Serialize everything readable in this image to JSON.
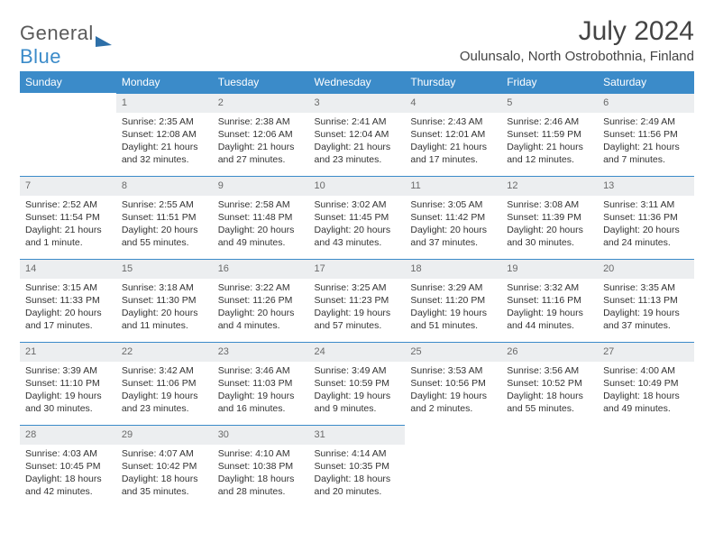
{
  "brand": {
    "word1": "General",
    "word2": "Blue"
  },
  "title": "July 2024",
  "location": "Oulunsalo, North Ostrobothnia, Finland",
  "accent_color": "#3b8bc9",
  "daynum_bg": "#eceef0",
  "weekday_labels": [
    "Sunday",
    "Monday",
    "Tuesday",
    "Wednesday",
    "Thursday",
    "Friday",
    "Saturday"
  ],
  "weeks": [
    [
      {
        "n": "",
        "sr": "",
        "ss": "",
        "dl": ""
      },
      {
        "n": "1",
        "sr": "Sunrise: 2:35 AM",
        "ss": "Sunset: 12:08 AM",
        "dl": "Daylight: 21 hours and 32 minutes."
      },
      {
        "n": "2",
        "sr": "Sunrise: 2:38 AM",
        "ss": "Sunset: 12:06 AM",
        "dl": "Daylight: 21 hours and 27 minutes."
      },
      {
        "n": "3",
        "sr": "Sunrise: 2:41 AM",
        "ss": "Sunset: 12:04 AM",
        "dl": "Daylight: 21 hours and 23 minutes."
      },
      {
        "n": "4",
        "sr": "Sunrise: 2:43 AM",
        "ss": "Sunset: 12:01 AM",
        "dl": "Daylight: 21 hours and 17 minutes."
      },
      {
        "n": "5",
        "sr": "Sunrise: 2:46 AM",
        "ss": "Sunset: 11:59 PM",
        "dl": "Daylight: 21 hours and 12 minutes."
      },
      {
        "n": "6",
        "sr": "Sunrise: 2:49 AM",
        "ss": "Sunset: 11:56 PM",
        "dl": "Daylight: 21 hours and 7 minutes."
      }
    ],
    [
      {
        "n": "7",
        "sr": "Sunrise: 2:52 AM",
        "ss": "Sunset: 11:54 PM",
        "dl": "Daylight: 21 hours and 1 minute."
      },
      {
        "n": "8",
        "sr": "Sunrise: 2:55 AM",
        "ss": "Sunset: 11:51 PM",
        "dl": "Daylight: 20 hours and 55 minutes."
      },
      {
        "n": "9",
        "sr": "Sunrise: 2:58 AM",
        "ss": "Sunset: 11:48 PM",
        "dl": "Daylight: 20 hours and 49 minutes."
      },
      {
        "n": "10",
        "sr": "Sunrise: 3:02 AM",
        "ss": "Sunset: 11:45 PM",
        "dl": "Daylight: 20 hours and 43 minutes."
      },
      {
        "n": "11",
        "sr": "Sunrise: 3:05 AM",
        "ss": "Sunset: 11:42 PM",
        "dl": "Daylight: 20 hours and 37 minutes."
      },
      {
        "n": "12",
        "sr": "Sunrise: 3:08 AM",
        "ss": "Sunset: 11:39 PM",
        "dl": "Daylight: 20 hours and 30 minutes."
      },
      {
        "n": "13",
        "sr": "Sunrise: 3:11 AM",
        "ss": "Sunset: 11:36 PM",
        "dl": "Daylight: 20 hours and 24 minutes."
      }
    ],
    [
      {
        "n": "14",
        "sr": "Sunrise: 3:15 AM",
        "ss": "Sunset: 11:33 PM",
        "dl": "Daylight: 20 hours and 17 minutes."
      },
      {
        "n": "15",
        "sr": "Sunrise: 3:18 AM",
        "ss": "Sunset: 11:30 PM",
        "dl": "Daylight: 20 hours and 11 minutes."
      },
      {
        "n": "16",
        "sr": "Sunrise: 3:22 AM",
        "ss": "Sunset: 11:26 PM",
        "dl": "Daylight: 20 hours and 4 minutes."
      },
      {
        "n": "17",
        "sr": "Sunrise: 3:25 AM",
        "ss": "Sunset: 11:23 PM",
        "dl": "Daylight: 19 hours and 57 minutes."
      },
      {
        "n": "18",
        "sr": "Sunrise: 3:29 AM",
        "ss": "Sunset: 11:20 PM",
        "dl": "Daylight: 19 hours and 51 minutes."
      },
      {
        "n": "19",
        "sr": "Sunrise: 3:32 AM",
        "ss": "Sunset: 11:16 PM",
        "dl": "Daylight: 19 hours and 44 minutes."
      },
      {
        "n": "20",
        "sr": "Sunrise: 3:35 AM",
        "ss": "Sunset: 11:13 PM",
        "dl": "Daylight: 19 hours and 37 minutes."
      }
    ],
    [
      {
        "n": "21",
        "sr": "Sunrise: 3:39 AM",
        "ss": "Sunset: 11:10 PM",
        "dl": "Daylight: 19 hours and 30 minutes."
      },
      {
        "n": "22",
        "sr": "Sunrise: 3:42 AM",
        "ss": "Sunset: 11:06 PM",
        "dl": "Daylight: 19 hours and 23 minutes."
      },
      {
        "n": "23",
        "sr": "Sunrise: 3:46 AM",
        "ss": "Sunset: 11:03 PM",
        "dl": "Daylight: 19 hours and 16 minutes."
      },
      {
        "n": "24",
        "sr": "Sunrise: 3:49 AM",
        "ss": "Sunset: 10:59 PM",
        "dl": "Daylight: 19 hours and 9 minutes."
      },
      {
        "n": "25",
        "sr": "Sunrise: 3:53 AM",
        "ss": "Sunset: 10:56 PM",
        "dl": "Daylight: 19 hours and 2 minutes."
      },
      {
        "n": "26",
        "sr": "Sunrise: 3:56 AM",
        "ss": "Sunset: 10:52 PM",
        "dl": "Daylight: 18 hours and 55 minutes."
      },
      {
        "n": "27",
        "sr": "Sunrise: 4:00 AM",
        "ss": "Sunset: 10:49 PM",
        "dl": "Daylight: 18 hours and 49 minutes."
      }
    ],
    [
      {
        "n": "28",
        "sr": "Sunrise: 4:03 AM",
        "ss": "Sunset: 10:45 PM",
        "dl": "Daylight: 18 hours and 42 minutes."
      },
      {
        "n": "29",
        "sr": "Sunrise: 4:07 AM",
        "ss": "Sunset: 10:42 PM",
        "dl": "Daylight: 18 hours and 35 minutes."
      },
      {
        "n": "30",
        "sr": "Sunrise: 4:10 AM",
        "ss": "Sunset: 10:38 PM",
        "dl": "Daylight: 18 hours and 28 minutes."
      },
      {
        "n": "31",
        "sr": "Sunrise: 4:14 AM",
        "ss": "Sunset: 10:35 PM",
        "dl": "Daylight: 18 hours and 20 minutes."
      },
      {
        "n": "",
        "sr": "",
        "ss": "",
        "dl": ""
      },
      {
        "n": "",
        "sr": "",
        "ss": "",
        "dl": ""
      },
      {
        "n": "",
        "sr": "",
        "ss": "",
        "dl": ""
      }
    ]
  ]
}
